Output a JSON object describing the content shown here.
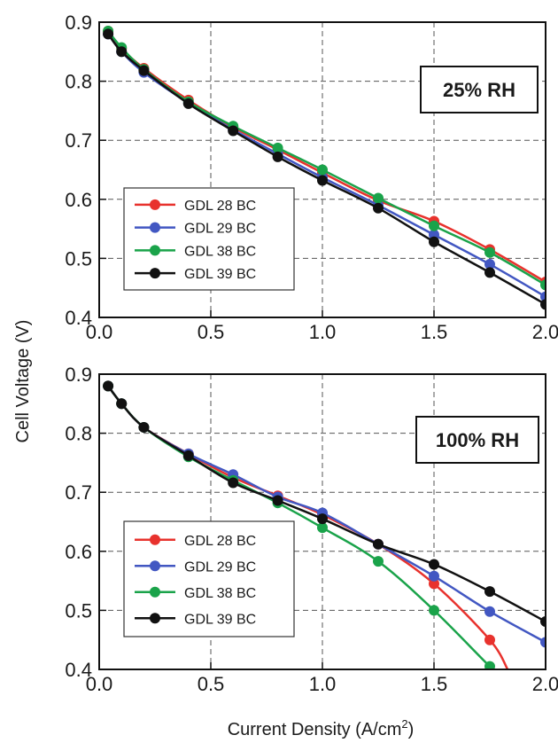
{
  "figure": {
    "ylabel": "Cell Voltage (V)",
    "xlabel_main": "Current Density (A/cm",
    "xlabel_sup": "2",
    "xlabel_tail": ")"
  },
  "chart_data": [
    {
      "type": "line",
      "annotation": "25% RH",
      "xlim": [
        0.0,
        2.0
      ],
      "ylim": [
        0.4,
        0.9
      ],
      "xticks": [
        "0.0",
        "0.5",
        "1.0",
        "1.5",
        "2.0"
      ],
      "yticks": [
        "0.4",
        "0.5",
        "0.6",
        "0.7",
        "0.8",
        "0.9"
      ],
      "grid": true,
      "legend_position": "lower-left",
      "x": [
        0.04,
        0.1,
        0.2,
        0.4,
        0.6,
        0.8,
        1.0,
        1.25,
        1.5,
        1.75,
        2.0
      ],
      "series": [
        {
          "name": "GDL 28 BC",
          "color": "#e8322d",
          "values": [
            0.885,
            0.855,
            0.822,
            0.768,
            0.722,
            0.684,
            0.645,
            0.598,
            0.563,
            0.515,
            0.46
          ]
        },
        {
          "name": "GDL 29 BC",
          "color": "#4257c2",
          "values": [
            0.88,
            0.85,
            0.815,
            0.763,
            0.718,
            0.677,
            0.637,
            0.59,
            0.54,
            0.49,
            0.435
          ]
        },
        {
          "name": "GDL 38 BC",
          "color": "#1aa34a",
          "values": [
            0.885,
            0.857,
            0.82,
            0.765,
            0.724,
            0.687,
            0.65,
            0.602,
            0.555,
            0.51,
            0.455
          ]
        },
        {
          "name": "GDL 39 BC",
          "color": "#111111",
          "values": [
            0.88,
            0.85,
            0.818,
            0.762,
            0.716,
            0.672,
            0.632,
            0.585,
            0.528,
            0.476,
            0.422
          ]
        }
      ]
    },
    {
      "type": "line",
      "annotation": "100% RH",
      "xlim": [
        0.0,
        2.0
      ],
      "ylim": [
        0.4,
        0.9
      ],
      "xticks": [
        "0.0",
        "0.5",
        "1.0",
        "1.5",
        "2.0"
      ],
      "yticks": [
        "0.4",
        "0.5",
        "0.6",
        "0.7",
        "0.8",
        "0.9"
      ],
      "grid": true,
      "legend_position": "lower-left",
      "series": [
        {
          "name": "GDL 28 BC",
          "color": "#e8322d",
          "x": [
            0.04,
            0.1,
            0.2,
            0.4,
            0.6,
            0.8,
            1.0,
            1.25,
            1.5,
            1.75,
            1.83
          ],
          "values": [
            0.88,
            0.85,
            0.81,
            0.765,
            0.725,
            0.694,
            0.662,
            0.612,
            0.545,
            0.45,
            0.4
          ],
          "markers": 10
        },
        {
          "name": "GDL 29 BC",
          "color": "#4257c2",
          "x": [
            0.04,
            0.1,
            0.2,
            0.4,
            0.6,
            0.8,
            1.0,
            1.25,
            1.5,
            1.75,
            2.0
          ],
          "values": [
            0.88,
            0.85,
            0.81,
            0.765,
            0.73,
            0.692,
            0.665,
            0.612,
            0.558,
            0.498,
            0.446
          ],
          "markers": 11
        },
        {
          "name": "GDL 38 BC",
          "color": "#1aa34a",
          "x": [
            0.04,
            0.1,
            0.2,
            0.4,
            0.6,
            0.8,
            1.0,
            1.25,
            1.5,
            1.75,
            1.78
          ],
          "values": [
            0.88,
            0.85,
            0.81,
            0.76,
            0.72,
            0.682,
            0.64,
            0.583,
            0.5,
            0.405,
            0.398
          ],
          "markers": 10
        },
        {
          "name": "GDL 39 BC",
          "color": "#111111",
          "x": [
            0.04,
            0.1,
            0.2,
            0.4,
            0.6,
            0.8,
            1.0,
            1.25,
            1.5,
            1.75,
            2.0
          ],
          "values": [
            0.88,
            0.85,
            0.81,
            0.762,
            0.716,
            0.686,
            0.655,
            0.612,
            0.578,
            0.532,
            0.481
          ],
          "markers": 11
        }
      ]
    }
  ]
}
